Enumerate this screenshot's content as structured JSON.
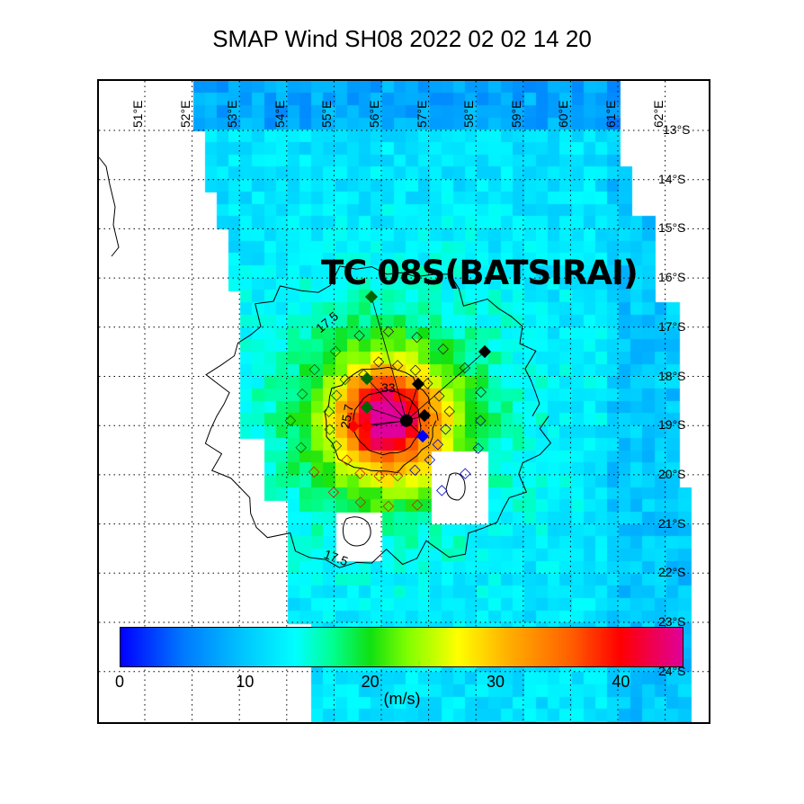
{
  "title": "SMAP Wind  SH08  2022 02 02 14 20",
  "storm_label": "TC 08S(BATSIRAI)",
  "longitude_labels": [
    "51°E",
    "52°E",
    "53°E",
    "54°E",
    "55°E",
    "56°E",
    "57°E",
    "58°E",
    "59°E",
    "60°E",
    "61°E",
    "62°E"
  ],
  "latitude_labels": [
    "13°S",
    "14°S",
    "15°S",
    "16°S",
    "17°S",
    "18°S",
    "19°S",
    "20°S",
    "21°S",
    "22°S",
    "23°S",
    "24°S"
  ],
  "contour_labels": {
    "outer_top": "17.5",
    "outer_bottom": "17.5",
    "middle": "25.7",
    "inner": "33"
  },
  "colorbar": {
    "ticks": [
      "0",
      "10",
      "20",
      "30",
      "40"
    ],
    "range": [
      0,
      45
    ],
    "units": "(m/s)",
    "stops": [
      [
        0,
        "#0000ff"
      ],
      [
        5,
        "#0078ff"
      ],
      [
        10,
        "#00c8ff"
      ],
      [
        14,
        "#00ffff"
      ],
      [
        17,
        "#00ff90"
      ],
      [
        20,
        "#10e010"
      ],
      [
        23,
        "#80ff00"
      ],
      [
        27,
        "#ffff00"
      ],
      [
        31,
        "#ffb000"
      ],
      [
        36,
        "#ff6000"
      ],
      [
        40,
        "#ff0000"
      ],
      [
        45,
        "#e0009a"
      ]
    ]
  },
  "storm_center": {
    "lon": 56.15,
    "lat": -18.9,
    "max_wind_ms": 44
  }
}
